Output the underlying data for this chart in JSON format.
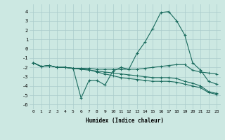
{
  "background_color": "#cce8e2",
  "grid_color": "#aacccc",
  "line_color": "#1a6b5e",
  "x_label": "Humidex (Indice chaleur)",
  "ylim": [
    -6.5,
    4.8
  ],
  "xlim": [
    -0.5,
    23.5
  ],
  "yticks": [
    -6,
    -5,
    -4,
    -3,
    -2,
    -1,
    0,
    1,
    2,
    3,
    4
  ],
  "xticks": [
    0,
    1,
    2,
    3,
    4,
    5,
    6,
    7,
    8,
    9,
    10,
    11,
    12,
    13,
    14,
    15,
    16,
    17,
    18,
    19,
    20,
    21,
    22,
    23
  ],
  "line1_x": [
    0,
    1,
    2,
    3,
    4,
    5,
    6,
    7,
    8,
    9,
    10,
    11,
    12,
    13,
    14,
    15,
    16,
    17,
    18,
    19,
    20,
    21,
    22,
    23
  ],
  "line1_y": [
    -1.5,
    -1.9,
    -1.8,
    -2.0,
    -2.0,
    -2.1,
    -5.3,
    -3.4,
    -3.4,
    -3.9,
    -2.4,
    -2.0,
    -2.2,
    -0.5,
    0.7,
    2.2,
    3.9,
    4.0,
    3.0,
    1.5,
    -1.5,
    -2.3,
    -3.5,
    -3.8
  ],
  "line2_x": [
    0,
    1,
    2,
    3,
    4,
    5,
    6,
    7,
    8,
    9,
    10,
    11,
    12,
    13,
    14,
    15,
    16,
    17,
    18,
    19,
    20,
    21,
    22,
    23
  ],
  "line2_y": [
    -1.5,
    -1.9,
    -1.8,
    -2.0,
    -2.0,
    -2.1,
    -2.1,
    -2.1,
    -2.2,
    -2.2,
    -2.2,
    -2.2,
    -2.2,
    -2.2,
    -2.1,
    -2.0,
    -1.9,
    -1.8,
    -1.7,
    -1.7,
    -2.3,
    -2.5,
    -2.6,
    -2.7
  ],
  "line3_x": [
    0,
    1,
    2,
    3,
    4,
    5,
    6,
    7,
    8,
    9,
    10,
    11,
    12,
    13,
    14,
    15,
    16,
    17,
    18,
    19,
    20,
    21,
    22,
    23
  ],
  "line3_y": [
    -1.5,
    -1.9,
    -1.8,
    -2.0,
    -2.0,
    -2.1,
    -2.2,
    -2.3,
    -2.4,
    -2.5,
    -2.6,
    -2.7,
    -2.8,
    -2.9,
    -3.0,
    -3.1,
    -3.1,
    -3.1,
    -3.2,
    -3.5,
    -3.7,
    -4.0,
    -4.6,
    -4.8
  ],
  "line4_x": [
    0,
    1,
    2,
    3,
    4,
    5,
    6,
    7,
    8,
    9,
    10,
    11,
    12,
    13,
    14,
    15,
    16,
    17,
    18,
    19,
    20,
    21,
    22,
    23
  ],
  "line4_y": [
    -1.5,
    -1.9,
    -1.8,
    -2.0,
    -2.0,
    -2.1,
    -2.15,
    -2.25,
    -2.5,
    -2.7,
    -2.9,
    -3.1,
    -3.2,
    -3.3,
    -3.4,
    -3.5,
    -3.5,
    -3.5,
    -3.6,
    -3.8,
    -4.0,
    -4.2,
    -4.7,
    -4.9
  ]
}
